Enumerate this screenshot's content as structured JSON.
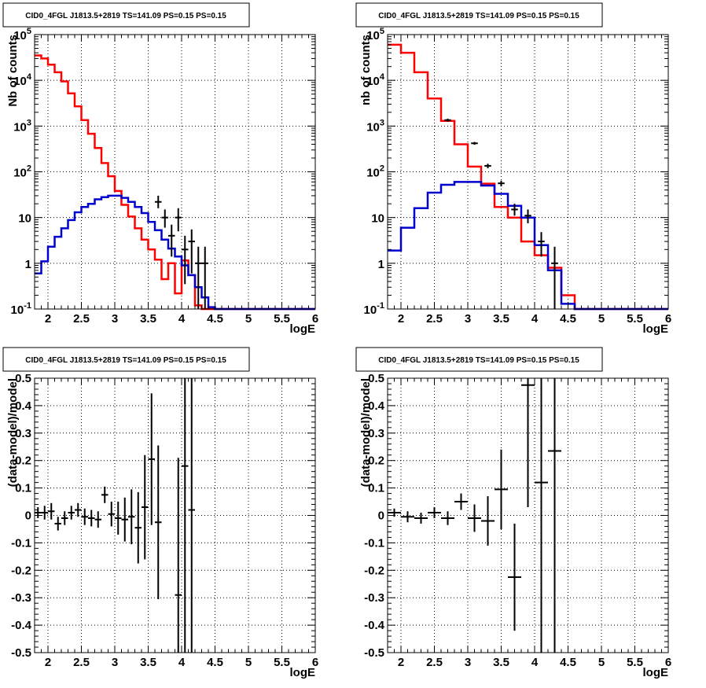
{
  "chart_data": [
    {
      "type": "histogram",
      "title": "CID0_4FGL J1813.5+2819 TS=141.09 PS=0.15 PS=0.15",
      "xlabel": "logE",
      "ylabel": "Nb of counts",
      "xlim": [
        1.8,
        6.0
      ],
      "ylim": [
        0.1,
        100000
      ],
      "yscale": "log",
      "grid": true,
      "xticks": [
        "2",
        "2.5",
        "3",
        "3.5",
        "4",
        "4.5",
        "5",
        "5.5",
        "6"
      ],
      "yticks": [
        "10^-1",
        "1",
        "10",
        "10^2",
        "10^3",
        "10^4",
        "10^5"
      ],
      "bin_edges": [
        1.8,
        1.9,
        2.0,
        2.1,
        2.2,
        2.3,
        2.4,
        2.5,
        2.6,
        2.7,
        2.8,
        2.9,
        3.0,
        3.1,
        3.2,
        3.3,
        3.4,
        3.5,
        3.6,
        3.7,
        3.8,
        3.9,
        4.0,
        4.1,
        4.2,
        4.3,
        4.4,
        4.5,
        4.6,
        4.7,
        4.8,
        4.9,
        5.0,
        5.1,
        5.2,
        5.3,
        5.4,
        5.5,
        5.6,
        5.7,
        5.8,
        5.9,
        6.0
      ],
      "series": [
        {
          "color": "#ff0000",
          "values": [
            35000,
            30000,
            22000,
            15000,
            9500,
            5200,
            2700,
            1350,
            680,
            330,
            155,
            80,
            38,
            19,
            10.5,
            5.8,
            3.3,
            2.0,
            1.2,
            0.45,
            1.0,
            0.22,
            1.15,
            0.55,
            0.12,
            0.1,
            0.1,
            0.1,
            0.1,
            0.1,
            0.1,
            0.1,
            0.1,
            0.1,
            0.1,
            0.1,
            0.1,
            0.1,
            0.1,
            0.1,
            0.1,
            0.1
          ]
        },
        {
          "color": "#0000cc",
          "values": [
            0.6,
            1.1,
            2.3,
            3.8,
            5.8,
            8.8,
            13,
            17,
            20,
            25,
            28,
            30,
            30,
            27,
            22,
            17,
            12.5,
            8,
            5.3,
            3.3,
            2.1,
            1.4,
            0.9,
            0.55,
            0.3,
            0.18,
            0.11,
            0.1,
            0.1,
            0.1,
            0.1,
            0.1,
            0.1,
            0.1,
            0.1,
            0.1,
            0.1,
            0.1,
            0.1,
            0.1,
            0.1,
            0.1
          ]
        }
      ],
      "points": [
        {
          "x": 3.65,
          "y": 22,
          "ylo": 16,
          "yhi": 30
        },
        {
          "x": 3.75,
          "y": 10,
          "ylo": 6,
          "yhi": 15
        },
        {
          "x": 3.85,
          "y": 4,
          "ylo": 1.4,
          "yhi": 7
        },
        {
          "x": 3.95,
          "y": 10,
          "ylo": 5,
          "yhi": 16
        },
        {
          "x": 4.05,
          "y": 2,
          "ylo": 0.35,
          "yhi": 4
        },
        {
          "x": 4.15,
          "y": 3,
          "ylo": 0.6,
          "yhi": 5.5
        },
        {
          "x": 4.25,
          "y": 1,
          "ylo": 0.1,
          "yhi": 2.3
        },
        {
          "x": 4.35,
          "y": 1,
          "ylo": 0.1,
          "yhi": 2.3
        }
      ]
    },
    {
      "type": "histogram",
      "title": "CID0_4FGL J1813.5+2819 TS=141.09 PS=0.15 PS=0.15",
      "xlabel": "logE",
      "ylabel": "nb of counts",
      "xlim": [
        1.8,
        6.0
      ],
      "ylim": [
        0.1,
        100000
      ],
      "yscale": "log",
      "grid": true,
      "xticks": [
        "2",
        "2.5",
        "3",
        "3.5",
        "4",
        "4.5",
        "5",
        "5.5",
        "6"
      ],
      "yticks": [
        "10^-1",
        "1",
        "10",
        "10^2",
        "10^3",
        "10^4",
        "10^5"
      ],
      "bin_edges": [
        1.8,
        2.0,
        2.2,
        2.4,
        2.6,
        2.8,
        3.0,
        3.2,
        3.4,
        3.6,
        3.8,
        4.0,
        4.2,
        4.4,
        4.6,
        4.8,
        5.0,
        5.2,
        5.4,
        5.6,
        5.8,
        6.0
      ],
      "series": [
        {
          "color": "#ff0000",
          "values": [
            60000,
            40000,
            15000,
            4000,
            1300,
            400,
            130,
            55,
            17,
            10,
            3,
            1.5,
            0.8,
            0.2,
            0.1,
            0.1,
            0.1,
            0.1,
            0.1,
            0.1,
            0.1
          ]
        },
        {
          "color": "#0000cc",
          "values": [
            1.9,
            6,
            16,
            35,
            52,
            60,
            60,
            50,
            33,
            18,
            10,
            2.5,
            0.7,
            0.13,
            0.1,
            0.1,
            0.1,
            0.1,
            0.1,
            0.1,
            0.1
          ]
        }
      ],
      "points": [
        {
          "x": 2.7,
          "y": 1350,
          "ylo": 1250,
          "yhi": 1450
        },
        {
          "x": 3.1,
          "y": 420,
          "ylo": 390,
          "yhi": 450
        },
        {
          "x": 3.3,
          "y": 135,
          "ylo": 120,
          "yhi": 150
        },
        {
          "x": 3.5,
          "y": 56,
          "ylo": 48,
          "yhi": 64
        },
        {
          "x": 3.7,
          "y": 15,
          "ylo": 11,
          "yhi": 20
        },
        {
          "x": 3.9,
          "y": 11,
          "ylo": 7.5,
          "yhi": 15
        },
        {
          "x": 4.1,
          "y": 3,
          "ylo": 1.4,
          "yhi": 4.8
        },
        {
          "x": 4.3,
          "y": 1,
          "ylo": 0.1,
          "yhi": 2.3
        }
      ]
    },
    {
      "type": "scatter",
      "title": "CID0_4FGL J1813.5+2819 TS=141.09 PS=0.15 PS=0.15",
      "xlabel": "logE",
      "ylabel": "(data-model)/model",
      "xlim": [
        1.8,
        6.0
      ],
      "ylim": [
        -0.5,
        0.5
      ],
      "grid": true,
      "xticks": [
        "2",
        "2.5",
        "3",
        "3.5",
        "4",
        "4.5",
        "5",
        "5.5",
        "6"
      ],
      "yticks": [
        "-0.5",
        "-0.4",
        "-0.3",
        "-0.2",
        "-0.1",
        "0",
        "0.1",
        "0.2",
        "0.3",
        "0.4",
        "0.5"
      ],
      "xerr": 0.05,
      "points": [
        {
          "x": 1.85,
          "y": 0.01,
          "err": 0.02
        },
        {
          "x": 1.95,
          "y": 0.01,
          "err": 0.025
        },
        {
          "x": 2.05,
          "y": 0.015,
          "err": 0.03
        },
        {
          "x": 2.15,
          "y": -0.03,
          "err": 0.025
        },
        {
          "x": 2.25,
          "y": -0.01,
          "err": 0.025
        },
        {
          "x": 2.35,
          "y": 0.01,
          "err": 0.025
        },
        {
          "x": 2.45,
          "y": 0.02,
          "err": 0.025
        },
        {
          "x": 2.55,
          "y": -0.005,
          "err": 0.03
        },
        {
          "x": 2.65,
          "y": -0.01,
          "err": 0.03
        },
        {
          "x": 2.75,
          "y": -0.015,
          "err": 0.03
        },
        {
          "x": 2.85,
          "y": 0.075,
          "err": 0.03
        },
        {
          "x": 2.95,
          "y": 0.005,
          "err": 0.045
        },
        {
          "x": 3.05,
          "y": -0.01,
          "err": 0.06
        },
        {
          "x": 3.15,
          "y": -0.015,
          "err": 0.08
        },
        {
          "x": 3.25,
          "y": -0.005,
          "err": 0.1
        },
        {
          "x": 3.35,
          "y": -0.045,
          "err": 0.13
        },
        {
          "x": 3.45,
          "y": 0.03,
          "err": 0.19
        },
        {
          "x": 3.55,
          "y": 0.205,
          "err": 0.24
        },
        {
          "x": 3.65,
          "y": -0.025,
          "err": 0.28
        },
        {
          "x": 3.95,
          "y": -0.29,
          "err": 0.5
        },
        {
          "x": 4.05,
          "y": 0.18,
          "err": 0.7
        },
        {
          "x": 4.15,
          "y": 0.02,
          "err": 0.55
        }
      ]
    },
    {
      "type": "scatter",
      "title": "CID0_4FGL J1813.5+2819 TS=141.09 PS=0.15 PS=0.15",
      "xlabel": "logE",
      "ylabel": "(data-model)/model",
      "xlim": [
        1.8,
        6.0
      ],
      "ylim": [
        -0.5,
        0.5
      ],
      "grid": true,
      "xticks": [
        "2",
        "2.5",
        "3",
        "3.5",
        "4",
        "4.5",
        "5",
        "5.5",
        "6"
      ],
      "yticks": [
        "-0.5",
        "-0.4",
        "-0.3",
        "-0.2",
        "-0.1",
        "0",
        "0.1",
        "0.2",
        "0.3",
        "0.4",
        "0.5"
      ],
      "xerr": 0.1,
      "points": [
        {
          "x": 1.9,
          "y": 0.01,
          "err": 0.015
        },
        {
          "x": 2.1,
          "y": -0.005,
          "err": 0.02
        },
        {
          "x": 2.3,
          "y": -0.01,
          "err": 0.02
        },
        {
          "x": 2.5,
          "y": 0.01,
          "err": 0.02
        },
        {
          "x": 2.7,
          "y": -0.01,
          "err": 0.025
        },
        {
          "x": 2.9,
          "y": 0.05,
          "err": 0.03
        },
        {
          "x": 3.1,
          "y": -0.01,
          "err": 0.05
        },
        {
          "x": 3.3,
          "y": -0.02,
          "err": 0.09
        },
        {
          "x": 3.5,
          "y": 0.095,
          "err": 0.145
        },
        {
          "x": 3.7,
          "y": -0.225,
          "err": 0.195
        },
        {
          "x": 3.9,
          "y": 0.475,
          "err": 0.445
        },
        {
          "x": 4.1,
          "y": 0.12,
          "err": 1.0
        },
        {
          "x": 4.3,
          "y": 0.235,
          "err": 1.0
        }
      ]
    }
  ]
}
